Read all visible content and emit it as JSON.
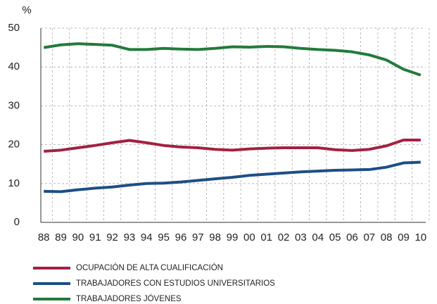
{
  "chart_data": {
    "type": "line",
    "y_label": "%",
    "categories": [
      "88",
      "89",
      "90",
      "91",
      "92",
      "93",
      "94",
      "95",
      "96",
      "97",
      "98",
      "99",
      "00",
      "01",
      "02",
      "03",
      "04",
      "05",
      "06",
      "07",
      "08",
      "09",
      "10"
    ],
    "series": [
      {
        "name": "OCUPACIÓN DE ALTA CUALIFICACIÓN",
        "color": "#a3213f",
        "values": [
          18.3,
          18.6,
          19.2,
          19.8,
          20.5,
          21.1,
          20.5,
          19.8,
          19.4,
          19.2,
          18.8,
          18.6,
          18.9,
          19.1,
          19.2,
          19.2,
          19.2,
          18.7,
          18.5,
          18.8,
          19.7,
          21.2,
          21.2
        ]
      },
      {
        "name": "TRABAJADORES CON ESTUDIOS UNIVERSITARIOS",
        "color": "#1d4f86",
        "values": [
          8,
          7.9,
          8.4,
          8.8,
          9.1,
          9.6,
          10,
          10.1,
          10.4,
          10.8,
          11.2,
          11.6,
          12.1,
          12.4,
          12.7,
          13,
          13.2,
          13.4,
          13.5,
          13.6,
          14.2,
          15.3,
          15.5
        ]
      },
      {
        "name": "TRABAJADORES JÓVENES",
        "color": "#237a3b",
        "values": [
          45,
          45.7,
          46,
          45.8,
          45.6,
          44.5,
          44.5,
          44.8,
          44.6,
          44.5,
          44.8,
          45.2,
          45.1,
          45.3,
          45.2,
          44.8,
          44.5,
          44.3,
          43.9,
          43.1,
          41.8,
          39.4,
          37.9
        ]
      }
    ],
    "ylim": [
      0,
      50
    ],
    "yticks": [
      0,
      10,
      20,
      30,
      40,
      50
    ],
    "grid": true,
    "legend": "bottom"
  }
}
